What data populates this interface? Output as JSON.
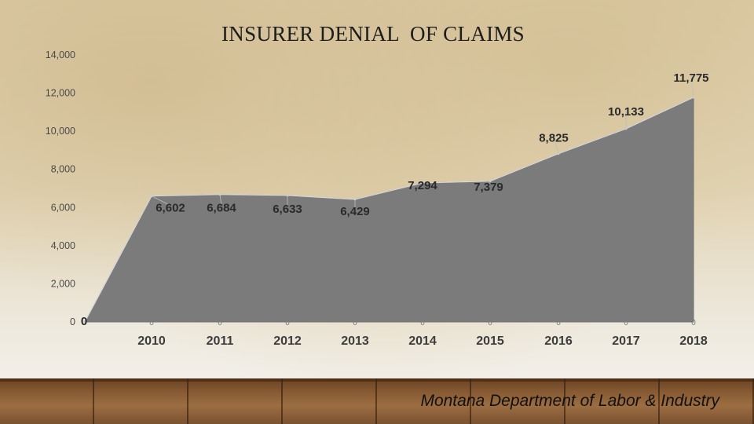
{
  "chart_data": {
    "type": "area",
    "title": "INSURER DENIAL  OF CLAIMS",
    "xlabel": "",
    "ylabel": "",
    "x": [
      "",
      "2010",
      "2011",
      "2012",
      "2013",
      "2014",
      "2015",
      "2016",
      "2017",
      "2018"
    ],
    "values": [
      0,
      6602,
      6684,
      6633,
      6429,
      7294,
      7379,
      8825,
      10133,
      11775
    ],
    "value_labels": [
      "0",
      "6,602",
      "6,684",
      "6,633",
      "6,429",
      "7,294",
      "7,379",
      "8,825",
      "10,133",
      "11,775"
    ],
    "ylim": [
      0,
      14000
    ],
    "y_ticks": [
      0,
      2000,
      4000,
      6000,
      8000,
      10000,
      12000,
      14000
    ],
    "y_tick_labels": [
      "0",
      "2,000",
      "4,000",
      "6,000",
      "8,000",
      "10,000",
      "12,000",
      "14,000"
    ],
    "baseline_labels": [
      "0",
      "0",
      "0",
      "0",
      "0",
      "0",
      "0",
      "0",
      "0"
    ],
    "grid": false,
    "legend": "none",
    "fill_color": "#7b7b7b"
  },
  "footer": {
    "credit": "Montana Department of Labor & Industry"
  }
}
